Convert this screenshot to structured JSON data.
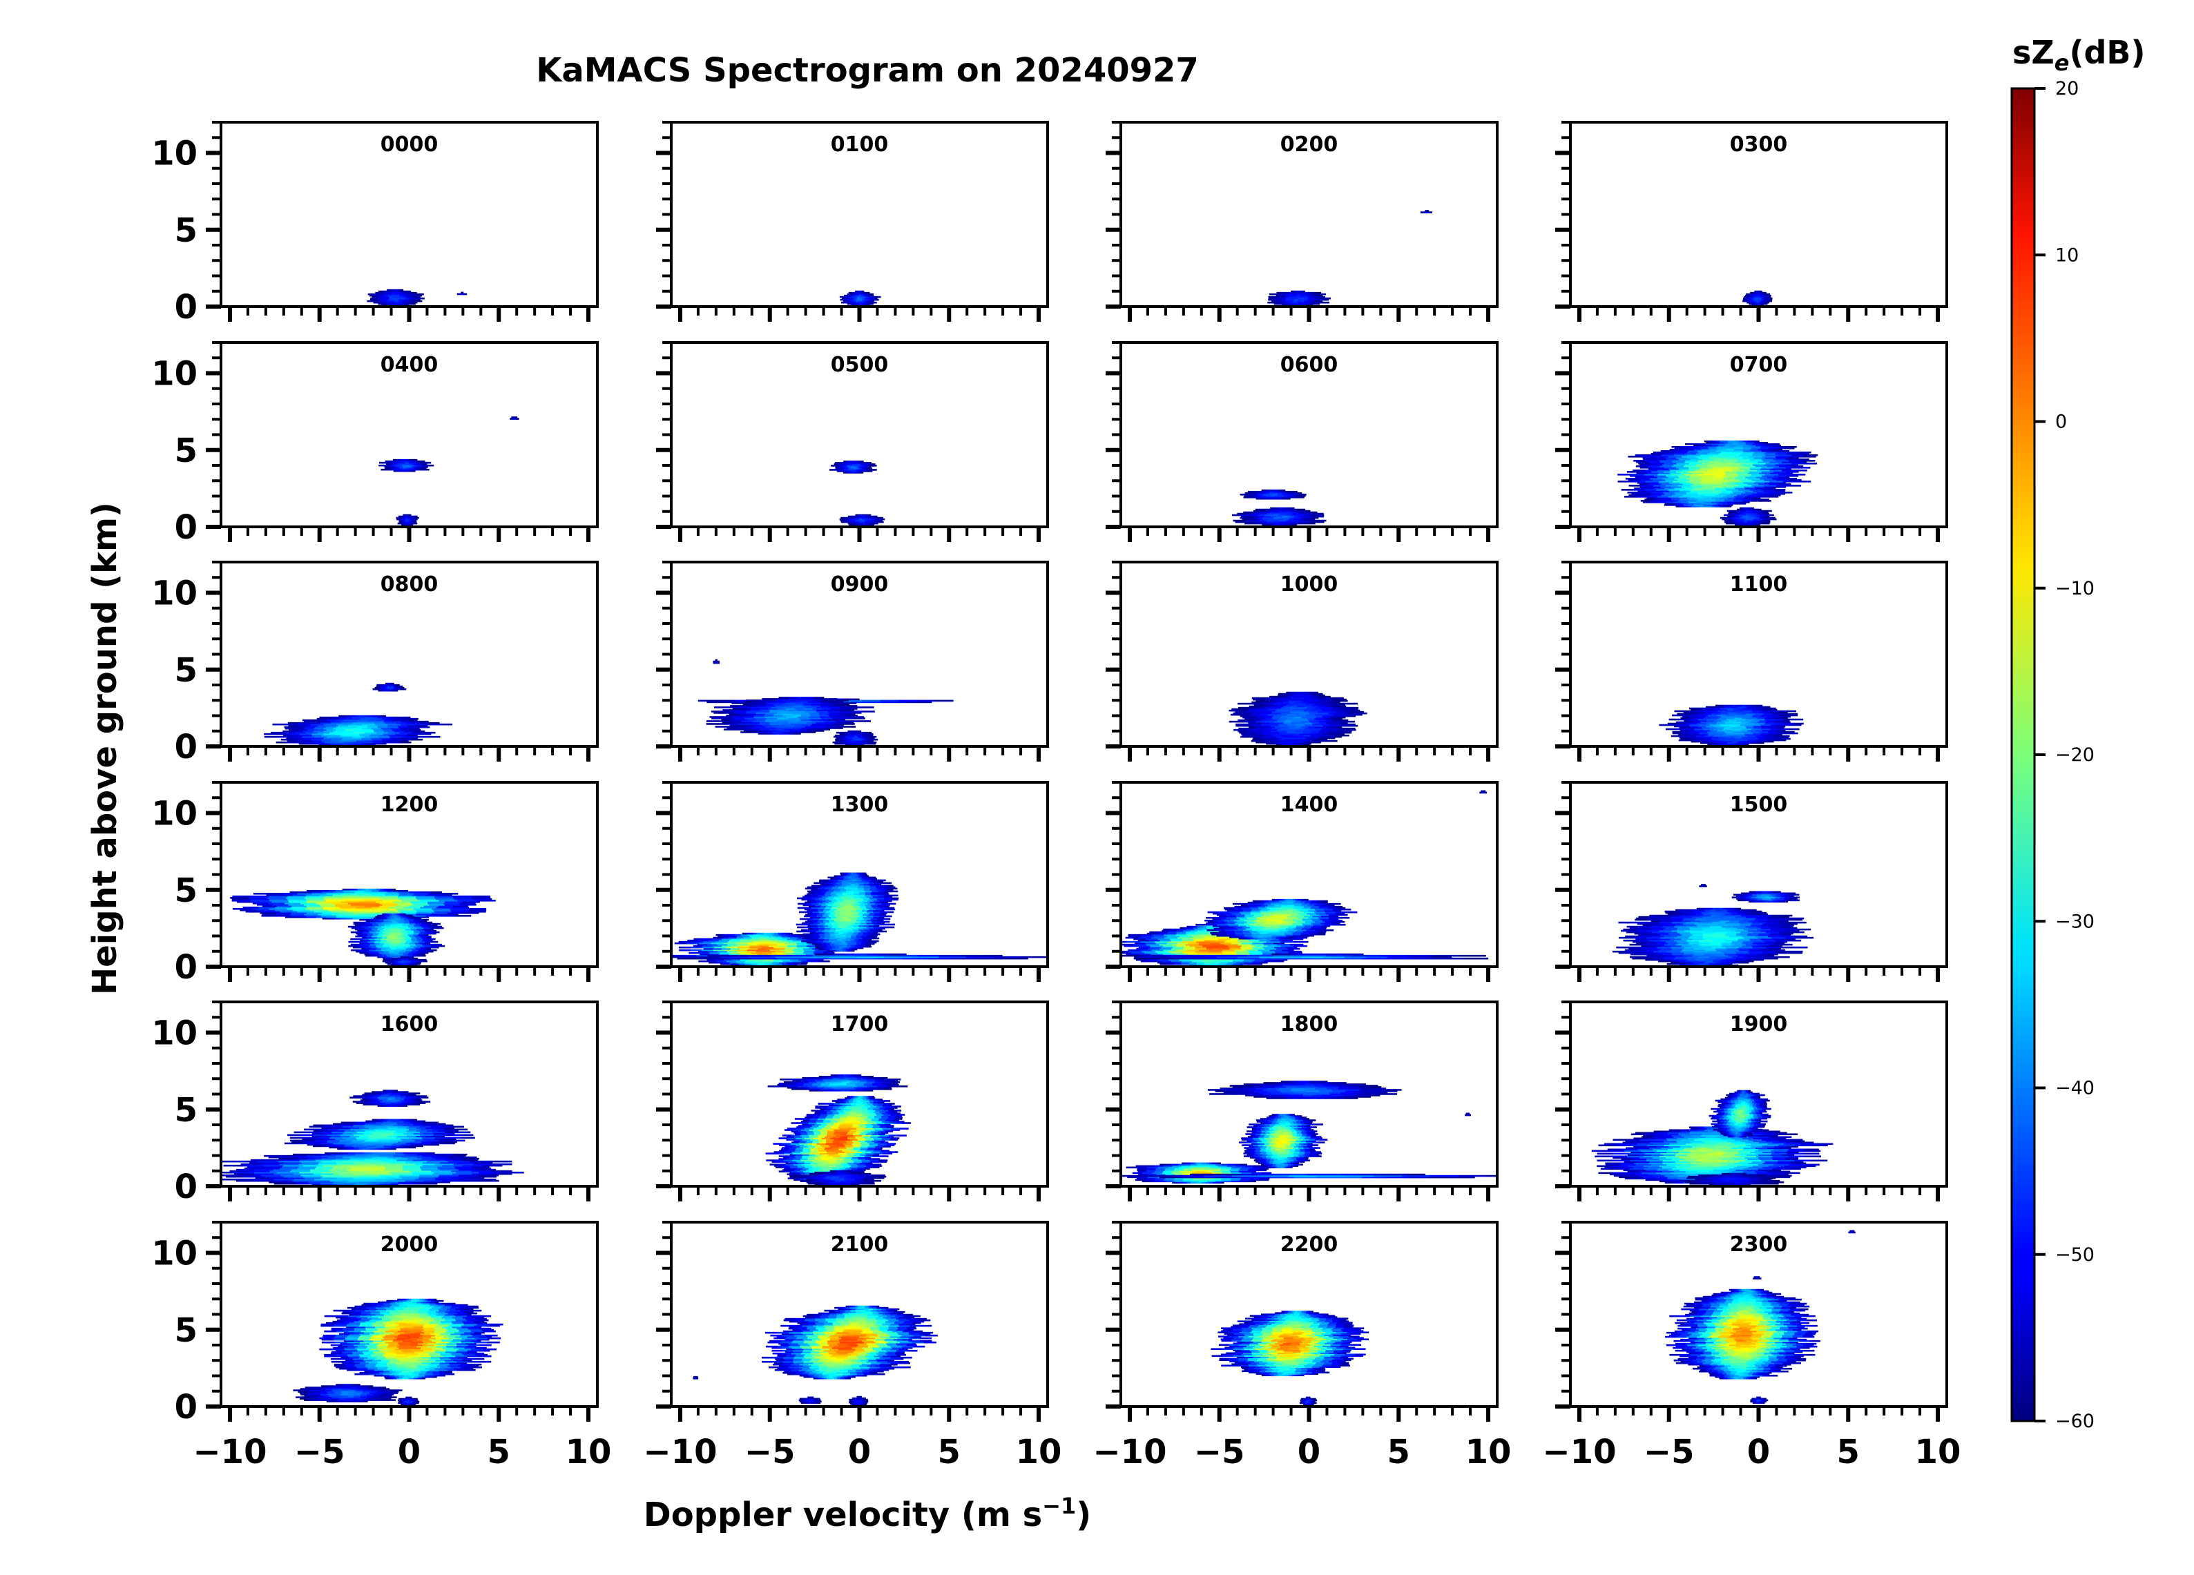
{
  "figure": {
    "title": "KaMACS Spectrogram on 20240927",
    "xlabel_main": "Doppler velocity (m s",
    "xlabel_sup": "−1",
    "xlabel_end": ")",
    "ylabel": "Height above ground (km)"
  },
  "colorbar": {
    "label_main": "sZ",
    "label_sub": "e",
    "label_unit": "(dB)",
    "range": [
      -60,
      20
    ],
    "ticks": [
      "20",
      "10",
      "0",
      "−10",
      "−20",
      "−30",
      "−40",
      "−50",
      "−60"
    ],
    "tick_values": [
      20,
      10,
      0,
      -10,
      -20,
      -30,
      -40,
      -50,
      -60
    ],
    "colormap": "jet"
  },
  "chart_data": {
    "type": "heatmap",
    "title": "KaMACS Spectrogram on 20240927",
    "xlabel": "Doppler velocity (m s−1)",
    "ylabel": "Height above ground (km)",
    "xlim": [
      -10.5,
      10.5
    ],
    "ylim": [
      0,
      12
    ],
    "x_ticks": [
      "−10",
      "−5",
      "0",
      "5",
      "10"
    ],
    "x_tick_values": [
      -10,
      -5,
      0,
      5,
      10
    ],
    "y_ticks": [
      "0",
      "5",
      "10"
    ],
    "y_tick_values": [
      0,
      5,
      10
    ],
    "value_units": "dB",
    "panels": [
      {
        "label": "0000",
        "blobs": [
          {
            "v0": -2.3,
            "v1": 0.8,
            "h0": 0.05,
            "h1": 1.1,
            "peak": -45,
            "tilt": 0
          },
          {
            "v0": 2.7,
            "v1": 3.2,
            "h0": 0.78,
            "h1": 0.88,
            "peak": -52,
            "tilt": 0
          }
        ]
      },
      {
        "label": "0100",
        "blobs": [
          {
            "v0": -1.0,
            "v1": 1.0,
            "h0": 0.05,
            "h1": 1.0,
            "peak": -42,
            "tilt": 0
          }
        ]
      },
      {
        "label": "0200",
        "blobs": [
          {
            "v0": -2.2,
            "v1": 1.0,
            "h0": 0.05,
            "h1": 1.0,
            "peak": -45,
            "tilt": 0
          },
          {
            "v0": 6.2,
            "v1": 6.9,
            "h0": 6.1,
            "h1": 6.22,
            "peak": -52,
            "tilt": 0
          }
        ]
      },
      {
        "label": "0300",
        "blobs": [
          {
            "v0": -0.8,
            "v1": 0.7,
            "h0": 0.05,
            "h1": 1.0,
            "peak": -45,
            "tilt": 0
          }
        ]
      },
      {
        "label": "0400",
        "blobs": [
          {
            "v0": -1.6,
            "v1": 1.2,
            "h0": 3.6,
            "h1": 4.4,
            "peak": -42,
            "tilt": 0
          },
          {
            "v0": -0.7,
            "v1": 0.5,
            "h0": 0.1,
            "h1": 0.8,
            "peak": -47,
            "tilt": 0
          },
          {
            "v0": 5.6,
            "v1": 6.1,
            "h0": 7.0,
            "h1": 7.15,
            "peak": -52,
            "tilt": 0
          }
        ]
      },
      {
        "label": "0500",
        "blobs": [
          {
            "v0": -1.5,
            "v1": 0.9,
            "h0": 3.5,
            "h1": 4.3,
            "peak": -42,
            "tilt": 0
          },
          {
            "v0": -1.0,
            "v1": 1.3,
            "h0": 0.1,
            "h1": 0.8,
            "peak": -45,
            "tilt": 0
          }
        ]
      },
      {
        "label": "0600",
        "blobs": [
          {
            "v0": -3.6,
            "v1": -0.3,
            "h0": 1.8,
            "h1": 2.4,
            "peak": -44,
            "tilt": 0
          },
          {
            "v0": -4.0,
            "v1": 0.8,
            "h0": 0.1,
            "h1": 1.2,
            "peak": -42,
            "tilt": 0
          }
        ]
      },
      {
        "label": "0700",
        "blobs": [
          {
            "v0": -7.2,
            "v1": 2.5,
            "h0": 1.3,
            "h1": 5.6,
            "peak": -12,
            "tilt": 2.0
          },
          {
            "v0": -2.0,
            "v1": 0.8,
            "h0": 0.1,
            "h1": 1.2,
            "peak": -43,
            "tilt": 0
          }
        ]
      },
      {
        "label": "0800",
        "blobs": [
          {
            "v0": -7.6,
            "v1": 1.5,
            "h0": 0.05,
            "h1": 2.0,
            "peak": -28,
            "tilt": 1.4
          },
          {
            "v0": -2.0,
            "v1": -0.3,
            "h0": 3.6,
            "h1": 4.1,
            "peak": -45,
            "tilt": 0
          }
        ]
      },
      {
        "label": "0900",
        "blobs": [
          {
            "v0": -10.2,
            "v1": 6.0,
            "h0": 2.85,
            "h1": 3.05,
            "peak": -32,
            "tilt": 0
          },
          {
            "v0": -8.0,
            "v1": 0.1,
            "h0": 0.8,
            "h1": 3.2,
            "peak": -36,
            "tilt": 1.2
          },
          {
            "v0": -1.5,
            "v1": 1.0,
            "h0": 0.05,
            "h1": 1.0,
            "peak": -46,
            "tilt": 0
          },
          {
            "v0": -8.2,
            "v1": -7.8,
            "h0": 5.4,
            "h1": 5.6,
            "peak": -52,
            "tilt": 0
          }
        ]
      },
      {
        "label": "1000",
        "blobs": [
          {
            "v0": -4.0,
            "v1": 2.5,
            "h0": 0.05,
            "h1": 3.5,
            "peak": -40,
            "tilt": 0.6
          }
        ]
      },
      {
        "label": "1100",
        "blobs": [
          {
            "v0": -5.0,
            "v1": 2.2,
            "h0": 0.1,
            "h1": 2.7,
            "peak": -33,
            "tilt": 0.3
          }
        ]
      },
      {
        "label": "1200",
        "blobs": [
          {
            "v0": -9.5,
            "v1": 4.3,
            "h0": 3.1,
            "h1": 5.0,
            "peak": 0,
            "tilt": 0
          },
          {
            "v0": -3.2,
            "v1": 1.6,
            "h0": 0.5,
            "h1": 3.4,
            "peak": -18,
            "tilt": 0
          },
          {
            "v0": -1.4,
            "v1": 0.8,
            "h0": 0.05,
            "h1": 0.6,
            "peak": -45,
            "tilt": 0
          }
        ]
      },
      {
        "label": "1300",
        "blobs": [
          {
            "v0": -9.8,
            "v1": -1.0,
            "h0": 0.05,
            "h1": 2.2,
            "peak": 2,
            "tilt": 0
          },
          {
            "v0": -10.2,
            "v1": 10.3,
            "h0": 0.5,
            "h1": 0.78,
            "peak": -32,
            "tilt": 0
          },
          {
            "v0": -3.2,
            "v1": 1.8,
            "h0": 1.0,
            "h1": 6.1,
            "peak": -18,
            "tilt": 0.8
          }
        ]
      },
      {
        "label": "1400",
        "blobs": [
          {
            "v0": -10.2,
            "v1": -0.5,
            "h0": 0.05,
            "h1": 2.6,
            "peak": 4,
            "tilt": 0
          },
          {
            "v0": -5.5,
            "v1": 2.0,
            "h0": 1.8,
            "h1": 4.4,
            "peak": -12,
            "tilt": 1.5
          },
          {
            "v0": -10.2,
            "v1": 10.3,
            "h0": 0.5,
            "h1": 0.78,
            "peak": -33,
            "tilt": 0
          },
          {
            "v0": 9.5,
            "v1": 9.9,
            "h0": 11.3,
            "h1": 11.45,
            "peak": -52,
            "tilt": 0
          }
        ]
      },
      {
        "label": "1500",
        "blobs": [
          {
            "v0": -7.5,
            "v1": 2.2,
            "h0": 0.05,
            "h1": 3.8,
            "peak": -28,
            "tilt": 0.8
          },
          {
            "v0": -1.4,
            "v1": 2.3,
            "h0": 4.2,
            "h1": 4.9,
            "peak": -35,
            "tilt": 0
          },
          {
            "v0": -3.3,
            "v1": -2.9,
            "h0": 5.2,
            "h1": 5.35,
            "peak": -52,
            "tilt": 0
          }
        ]
      },
      {
        "label": "1600",
        "blobs": [
          {
            "v0": -10.2,
            "v1": 5.5,
            "h0": 0.05,
            "h1": 2.2,
            "peak": -15,
            "tilt": 0.8
          },
          {
            "v0": -6.2,
            "v1": 3.0,
            "h0": 2.4,
            "h1": 4.3,
            "peak": -25,
            "tilt": 1.2
          },
          {
            "v0": -3.0,
            "v1": 0.9,
            "h0": 5.2,
            "h1": 6.2,
            "peak": -40,
            "tilt": 0
          }
        ]
      },
      {
        "label": "1700",
        "blobs": [
          {
            "v0": -4.2,
            "v1": 2.0,
            "h0": 0.3,
            "h1": 5.8,
            "peak": 5,
            "tilt": 2.6
          },
          {
            "v0": -4.5,
            "v1": 2.5,
            "h0": 6.2,
            "h1": 7.2,
            "peak": -32,
            "tilt": 0.4
          },
          {
            "v0": -3.5,
            "v1": 1.2,
            "h0": 0.05,
            "h1": 1.0,
            "peak": -45,
            "tilt": 0
          }
        ]
      },
      {
        "label": "1800",
        "blobs": [
          {
            "v0": -10.2,
            "v1": -2.0,
            "h0": 0.2,
            "h1": 1.5,
            "peak": -5,
            "tilt": 0
          },
          {
            "v0": -10.2,
            "v1": 10.3,
            "h0": 0.55,
            "h1": 0.8,
            "peak": -33,
            "tilt": 0
          },
          {
            "v0": -3.6,
            "v1": 0.6,
            "h0": 1.2,
            "h1": 4.7,
            "peak": -10,
            "tilt": 0.3
          },
          {
            "v0": -5.0,
            "v1": 4.8,
            "h0": 5.7,
            "h1": 6.8,
            "peak": -40,
            "tilt": 0
          },
          {
            "v0": 8.7,
            "v1": 9.0,
            "h0": 4.6,
            "h1": 4.75,
            "peak": -50,
            "tilt": 0
          }
        ]
      },
      {
        "label": "1900",
        "blobs": [
          {
            "v0": -8.5,
            "v1": 3.0,
            "h0": 0.2,
            "h1": 3.8,
            "peak": -15,
            "tilt": 0.8
          },
          {
            "v0": -2.5,
            "v1": 0.5,
            "h0": 3.2,
            "h1": 6.2,
            "peak": -20,
            "tilt": 0.5
          },
          {
            "v0": -4.0,
            "v1": 1.0,
            "h0": 0.05,
            "h1": 0.8,
            "peak": -48,
            "tilt": 0
          }
        ]
      },
      {
        "label": "2000",
        "blobs": [
          {
            "v0": -4.5,
            "v1": 4.5,
            "h0": 1.8,
            "h1": 7.0,
            "peak": 5,
            "tilt": 0.4
          },
          {
            "v0": -6.5,
            "v1": -0.5,
            "h0": 0.3,
            "h1": 1.4,
            "peak": -40,
            "tilt": 0
          },
          {
            "v0": -0.6,
            "v1": 0.5,
            "h0": 0.1,
            "h1": 0.6,
            "peak": -46,
            "tilt": 0
          }
        ]
      },
      {
        "label": "2100",
        "blobs": [
          {
            "v0": -4.8,
            "v1": 3.5,
            "h0": 1.8,
            "h1": 6.5,
            "peak": 5,
            "tilt": 2.0
          },
          {
            "v0": -3.5,
            "v1": -2.0,
            "h0": 0.2,
            "h1": 0.6,
            "peak": -48,
            "tilt": 0
          },
          {
            "v0": -0.6,
            "v1": 0.5,
            "h0": 0.05,
            "h1": 0.6,
            "peak": -47,
            "tilt": 0
          },
          {
            "v0": -9.3,
            "v1": -9.0,
            "h0": 1.8,
            "h1": 1.95,
            "peak": -50,
            "tilt": 0
          }
        ]
      },
      {
        "label": "2200",
        "blobs": [
          {
            "v0": -4.8,
            "v1": 2.8,
            "h0": 2.0,
            "h1": 6.2,
            "peak": 2,
            "tilt": 0.6
          },
          {
            "v0": -0.5,
            "v1": 0.4,
            "h0": 0.1,
            "h1": 0.6,
            "peak": -45,
            "tilt": 0
          }
        ]
      },
      {
        "label": "2300",
        "blobs": [
          {
            "v0": -4.5,
            "v1": 2.8,
            "h0": 1.8,
            "h1": 7.6,
            "peak": 0,
            "tilt": 0.3
          },
          {
            "v0": -0.5,
            "v1": 0.5,
            "h0": 0.2,
            "h1": 0.6,
            "peak": -46,
            "tilt": 0
          },
          {
            "v0": 5.0,
            "v1": 5.4,
            "h0": 11.3,
            "h1": 11.45,
            "peak": -50,
            "tilt": 0
          },
          {
            "v0": -0.3,
            "v1": 0.1,
            "h0": 8.3,
            "h1": 8.45,
            "peak": -50,
            "tilt": 0
          }
        ]
      }
    ]
  }
}
